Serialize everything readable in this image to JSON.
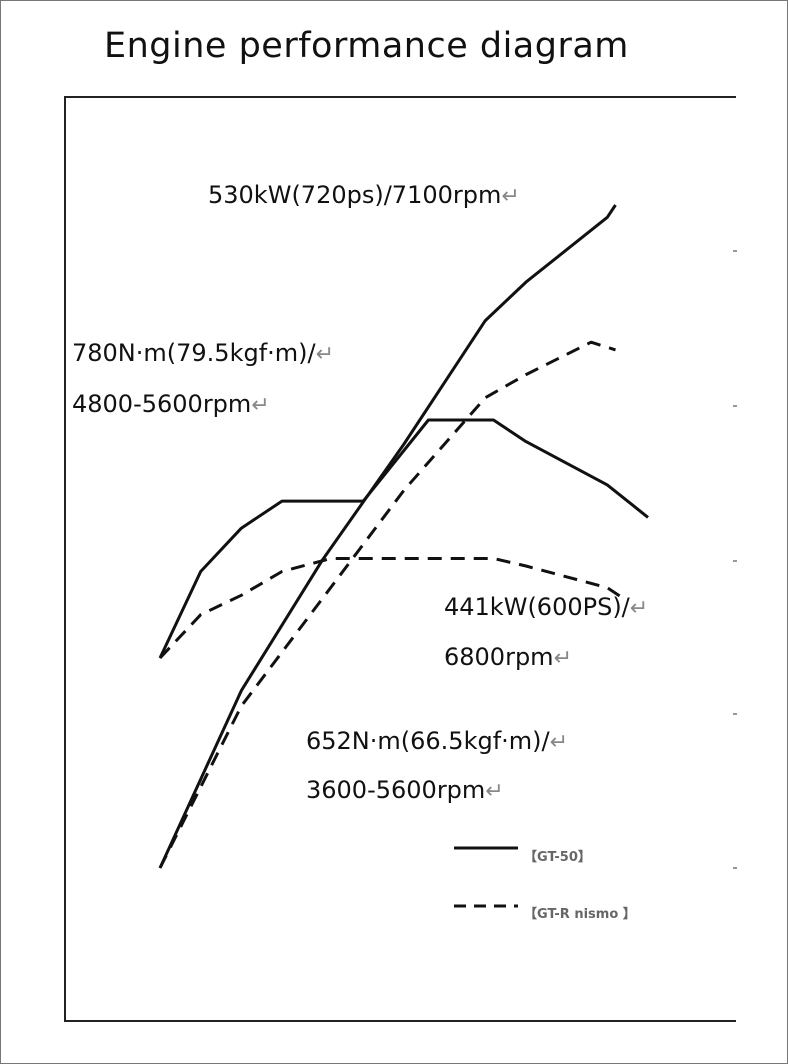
{
  "title": "Engine performance diagram",
  "annotations": [
    {
      "text": "530kW(720ps)/7100rpm",
      "mark": "↵"
    },
    {
      "text": "780N·m(79.5kgf·m)/",
      "mark": "↵"
    },
    {
      "text": "4800-5600rpm",
      "mark": "↵"
    },
    {
      "text": "441kW(600PS)/",
      "mark": "↵"
    },
    {
      "text": "6800rpm",
      "mark": "↵"
    },
    {
      "text": "652N·m(66.5kgf·m)/",
      "mark": "↵"
    },
    {
      "text": "3600-5600rpm",
      "mark": "↵"
    }
  ],
  "legend": [
    {
      "label": "【GT-50】",
      "style": "solid"
    },
    {
      "label": "【GT-R nismo 】",
      "style": "dashed"
    }
  ],
  "chart_data": {
    "type": "line",
    "title": "Engine performance diagram",
    "xlabel": "",
    "ylabel": "",
    "x_unit": "rpm",
    "x_range": [
      1500,
      7500
    ],
    "grid": false,
    "series": [
      {
        "name": "【GT-50】",
        "quantity": "power",
        "style": "solid",
        "color": "#111111",
        "points": [
          [
            1500,
            100
          ],
          [
            2500,
            215
          ],
          [
            3500,
            300
          ],
          [
            4500,
            375
          ],
          [
            5500,
            455
          ],
          [
            6000,
            480
          ],
          [
            7000,
            522
          ],
          [
            7100,
            530
          ]
        ]
      },
      {
        "name": "【GT-50】",
        "quantity": "torque",
        "style": "solid",
        "color": "#111111",
        "points": [
          [
            1500,
            560
          ],
          [
            2000,
            640
          ],
          [
            2500,
            680
          ],
          [
            3000,
            705
          ],
          [
            4000,
            705
          ],
          [
            4800,
            780
          ],
          [
            5600,
            780
          ],
          [
            6000,
            760
          ],
          [
            7000,
            720
          ],
          [
            7500,
            690
          ]
        ]
      },
      {
        "name": "【GT-R nismo 】",
        "quantity": "power",
        "style": "dashed",
        "color": "#111111",
        "points": [
          [
            1500,
            100
          ],
          [
            2500,
            205
          ],
          [
            3500,
            275
          ],
          [
            4500,
            345
          ],
          [
            5500,
            405
          ],
          [
            6000,
            420
          ],
          [
            6800,
            441
          ],
          [
            7100,
            436
          ]
        ]
      },
      {
        "name": "【GT-R nismo 】",
        "quantity": "torque",
        "style": "dashed",
        "color": "#111111",
        "points": [
          [
            1500,
            560
          ],
          [
            2000,
            600
          ],
          [
            2500,
            618
          ],
          [
            3000,
            640
          ],
          [
            3600,
            652
          ],
          [
            5600,
            652
          ],
          [
            6000,
            645
          ],
          [
            7000,
            625
          ],
          [
            7200,
            615
          ]
        ]
      }
    ]
  }
}
